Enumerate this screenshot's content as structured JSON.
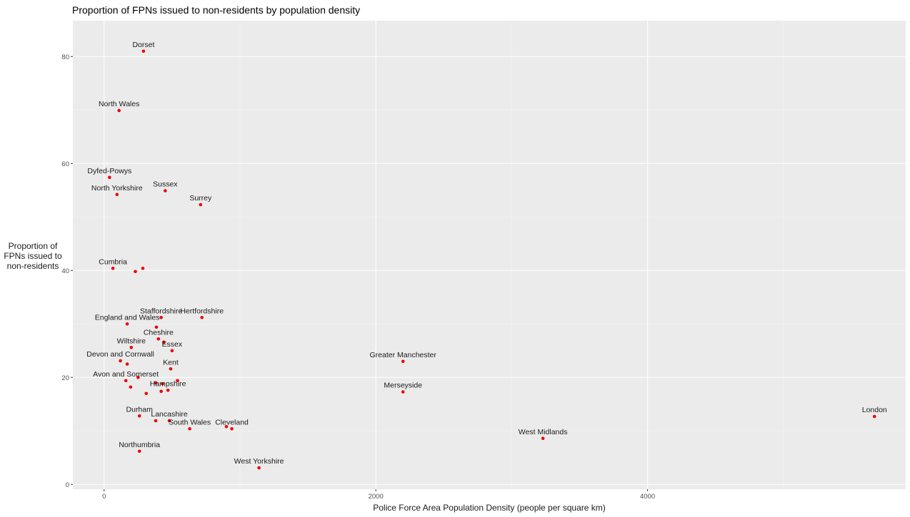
{
  "chart_data": {
    "type": "scatter",
    "title": "Proportion of FPNs issued to non-residents by population density",
    "xlabel": "Police Force Area Population Density (people per square km)",
    "ylabel": [
      "Proportion of",
      "FPNs issued to",
      "non-residents"
    ],
    "xlim": [
      -230,
      5900
    ],
    "ylim": [
      -0.9,
      86.7
    ],
    "x_ticks": [
      0,
      2000,
      4000
    ],
    "y_ticks": [
      0,
      20,
      40,
      60,
      80
    ],
    "grid": true,
    "point_color": "#ee0000",
    "points": [
      {
        "x": 290,
        "y": 81.0,
        "label": "Dorset"
      },
      {
        "x": 110,
        "y": 69.9,
        "label": "North Wales"
      },
      {
        "x": 40,
        "y": 57.4,
        "label": "Dyfed-Powys"
      },
      {
        "x": 95,
        "y": 54.2,
        "label": "North Yorkshire"
      },
      {
        "x": 450,
        "y": 54.9,
        "label": "Sussex"
      },
      {
        "x": 710,
        "y": 52.3,
        "label": "Surrey"
      },
      {
        "x": 65,
        "y": 40.4,
        "label": "Cumbria"
      },
      {
        "x": 230,
        "y": 39.8,
        "label": ""
      },
      {
        "x": 285,
        "y": 40.4,
        "label": ""
      },
      {
        "x": 420,
        "y": 31.2,
        "label": "Staffordshire"
      },
      {
        "x": 720,
        "y": 31.2,
        "label": "Hertfordshire"
      },
      {
        "x": 170,
        "y": 30.0,
        "label": "England and Wales"
      },
      {
        "x": 385,
        "y": 29.4,
        "label": ""
      },
      {
        "x": 400,
        "y": 27.2,
        "label": "Cheshire"
      },
      {
        "x": 440,
        "y": 26.6,
        "label": ""
      },
      {
        "x": 200,
        "y": 25.6,
        "label": "Wiltshire"
      },
      {
        "x": 500,
        "y": 25.0,
        "label": "Essex"
      },
      {
        "x": 120,
        "y": 23.1,
        "label": "Devon and Cornwall"
      },
      {
        "x": 170,
        "y": 22.5,
        "label": ""
      },
      {
        "x": 490,
        "y": 21.6,
        "label": "Kent"
      },
      {
        "x": 2200,
        "y": 23.0,
        "label": "Greater Manchester"
      },
      {
        "x": 250,
        "y": 20.0,
        "label": ""
      },
      {
        "x": 160,
        "y": 19.4,
        "label": "Avon and Somerset"
      },
      {
        "x": 380,
        "y": 19.0,
        "label": ""
      },
      {
        "x": 430,
        "y": 18.8,
        "label": ""
      },
      {
        "x": 540,
        "y": 19.4,
        "label": ""
      },
      {
        "x": 195,
        "y": 18.2,
        "label": ""
      },
      {
        "x": 310,
        "y": 17.0,
        "label": ""
      },
      {
        "x": 420,
        "y": 17.4,
        "label": ""
      },
      {
        "x": 470,
        "y": 17.6,
        "label": "Hampshire"
      },
      {
        "x": 2200,
        "y": 17.3,
        "label": "Merseyside"
      },
      {
        "x": 260,
        "y": 12.8,
        "label": "Durham"
      },
      {
        "x": 380,
        "y": 11.9,
        "label": ""
      },
      {
        "x": 480,
        "y": 11.9,
        "label": "Lancashire"
      },
      {
        "x": 630,
        "y": 10.4,
        "label": "South Wales"
      },
      {
        "x": 900,
        "y": 10.8,
        "label": ""
      },
      {
        "x": 940,
        "y": 10.4,
        "label": "Cleveland"
      },
      {
        "x": 5670,
        "y": 12.7,
        "label": "London"
      },
      {
        "x": 3230,
        "y": 8.6,
        "label": "West Midlands"
      },
      {
        "x": 260,
        "y": 6.2,
        "label": "Northumbria"
      },
      {
        "x": 1140,
        "y": 3.1,
        "label": "West Yorkshire"
      }
    ]
  }
}
